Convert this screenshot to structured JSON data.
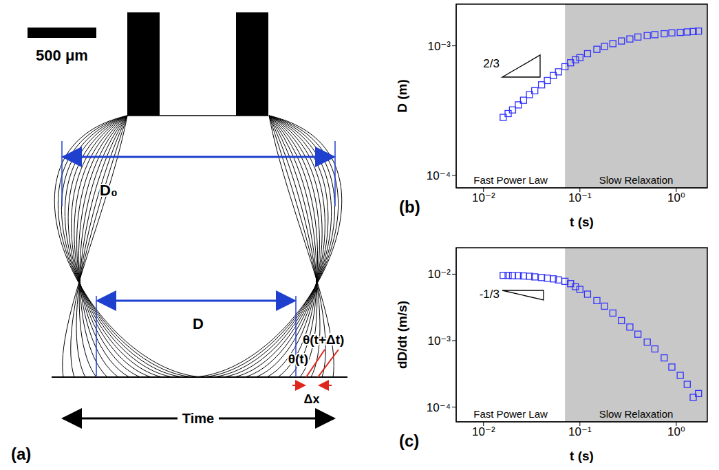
{
  "diagram": {
    "panel_label": "(a)",
    "scale_bar_label": "500 μm",
    "d0_label": "D₀",
    "d_label": "D",
    "theta_t_label": "θ(t)",
    "theta_t_dt_label": "θ(t+Δt)",
    "dx_label": "Δx",
    "time_label": "Time"
  },
  "chart_data": [
    {
      "type": "scatter",
      "panel_label": "(b)",
      "x_label": "t (s)",
      "y_label": "D (m)",
      "log": true,
      "grid": false,
      "xlim": [
        0.0052,
        2.1
      ],
      "ylim": [
        8e-05,
        0.0021
      ],
      "xticks": [
        {
          "value": 0.01,
          "label": "10⁻²"
        },
        {
          "value": 0.1,
          "label": "10⁻¹"
        },
        {
          "value": 1,
          "label": "10⁰"
        }
      ],
      "yticks": [
        {
          "value": 0.0001,
          "label": "10⁻⁴"
        },
        {
          "value": 0.001,
          "label": "10⁻³"
        }
      ],
      "x": [
        0.016,
        0.018,
        0.02,
        0.023,
        0.026,
        0.03,
        0.034,
        0.04,
        0.046,
        0.053,
        0.06,
        0.07,
        0.08,
        0.09,
        0.1,
        0.12,
        0.15,
        0.18,
        0.22,
        0.27,
        0.33,
        0.4,
        0.5,
        0.6,
        0.75,
        0.9,
        1.1,
        1.3,
        1.5,
        1.7
      ],
      "values": [
        0.00028,
        0.0003,
        0.00032,
        0.00035,
        0.00038,
        0.00042,
        0.00045,
        0.0005,
        0.00054,
        0.00059,
        0.00063,
        0.00069,
        0.00074,
        0.00078,
        0.00081,
        0.00087,
        0.00094,
        0.00099,
        0.00104,
        0.00109,
        0.00113,
        0.00117,
        0.0012,
        0.00122,
        0.00124,
        0.00126,
        0.00127,
        0.00128,
        0.00129,
        0.0013
      ],
      "color": "#3333ff",
      "marker": "square",
      "regions": [
        {
          "label": "Fast Power Law",
          "x": [
            0.0052,
            0.07
          ],
          "color": "#ffffff"
        },
        {
          "label": "Slow Relaxation",
          "x": [
            0.07,
            2.1
          ],
          "color": "#c8c8c8"
        }
      ],
      "slope_label": "2/3"
    },
    {
      "type": "scatter",
      "panel_label": "(c)",
      "x_label": "t (s)",
      "y_label": "dD/dt (m/s)",
      "log": true,
      "grid": false,
      "xlim": [
        0.0052,
        2.1
      ],
      "ylim": [
        6e-05,
        0.025
      ],
      "xticks": [
        {
          "value": 0.01,
          "label": "10⁻²"
        },
        {
          "value": 0.1,
          "label": "10⁻¹"
        },
        {
          "value": 1,
          "label": "10⁰"
        }
      ],
      "yticks": [
        {
          "value": 0.0001,
          "label": "10⁻⁴"
        },
        {
          "value": 0.001,
          "label": "10⁻³"
        },
        {
          "value": 0.01,
          "label": "10⁻²"
        }
      ],
      "x": [
        0.016,
        0.018,
        0.02,
        0.023,
        0.026,
        0.03,
        0.034,
        0.04,
        0.046,
        0.053,
        0.06,
        0.07,
        0.08,
        0.09,
        0.1,
        0.12,
        0.15,
        0.18,
        0.22,
        0.27,
        0.33,
        0.4,
        0.5,
        0.6,
        0.75,
        0.9,
        1.1,
        1.3,
        1.5,
        1.7
      ],
      "values": [
        0.0096,
        0.0096,
        0.0095,
        0.0095,
        0.0094,
        0.0093,
        0.0091,
        0.0089,
        0.0087,
        0.0085,
        0.0082,
        0.0078,
        0.0072,
        0.0065,
        0.0059,
        0.005,
        0.004,
        0.0033,
        0.0026,
        0.002,
        0.0016,
        0.00125,
        0.00095,
        0.00075,
        0.00055,
        0.0004,
        0.0003,
        0.00022,
        0.00014,
        0.00016
      ],
      "color": "#3333ff",
      "marker": "square",
      "regions": [
        {
          "label": "Fast Power Law",
          "x": [
            0.0052,
            0.07
          ],
          "color": "#ffffff"
        },
        {
          "label": "Slow Relaxation",
          "x": [
            0.07,
            2.1
          ],
          "color": "#c8c8c8"
        }
      ],
      "slope_label": "-1/3"
    }
  ]
}
